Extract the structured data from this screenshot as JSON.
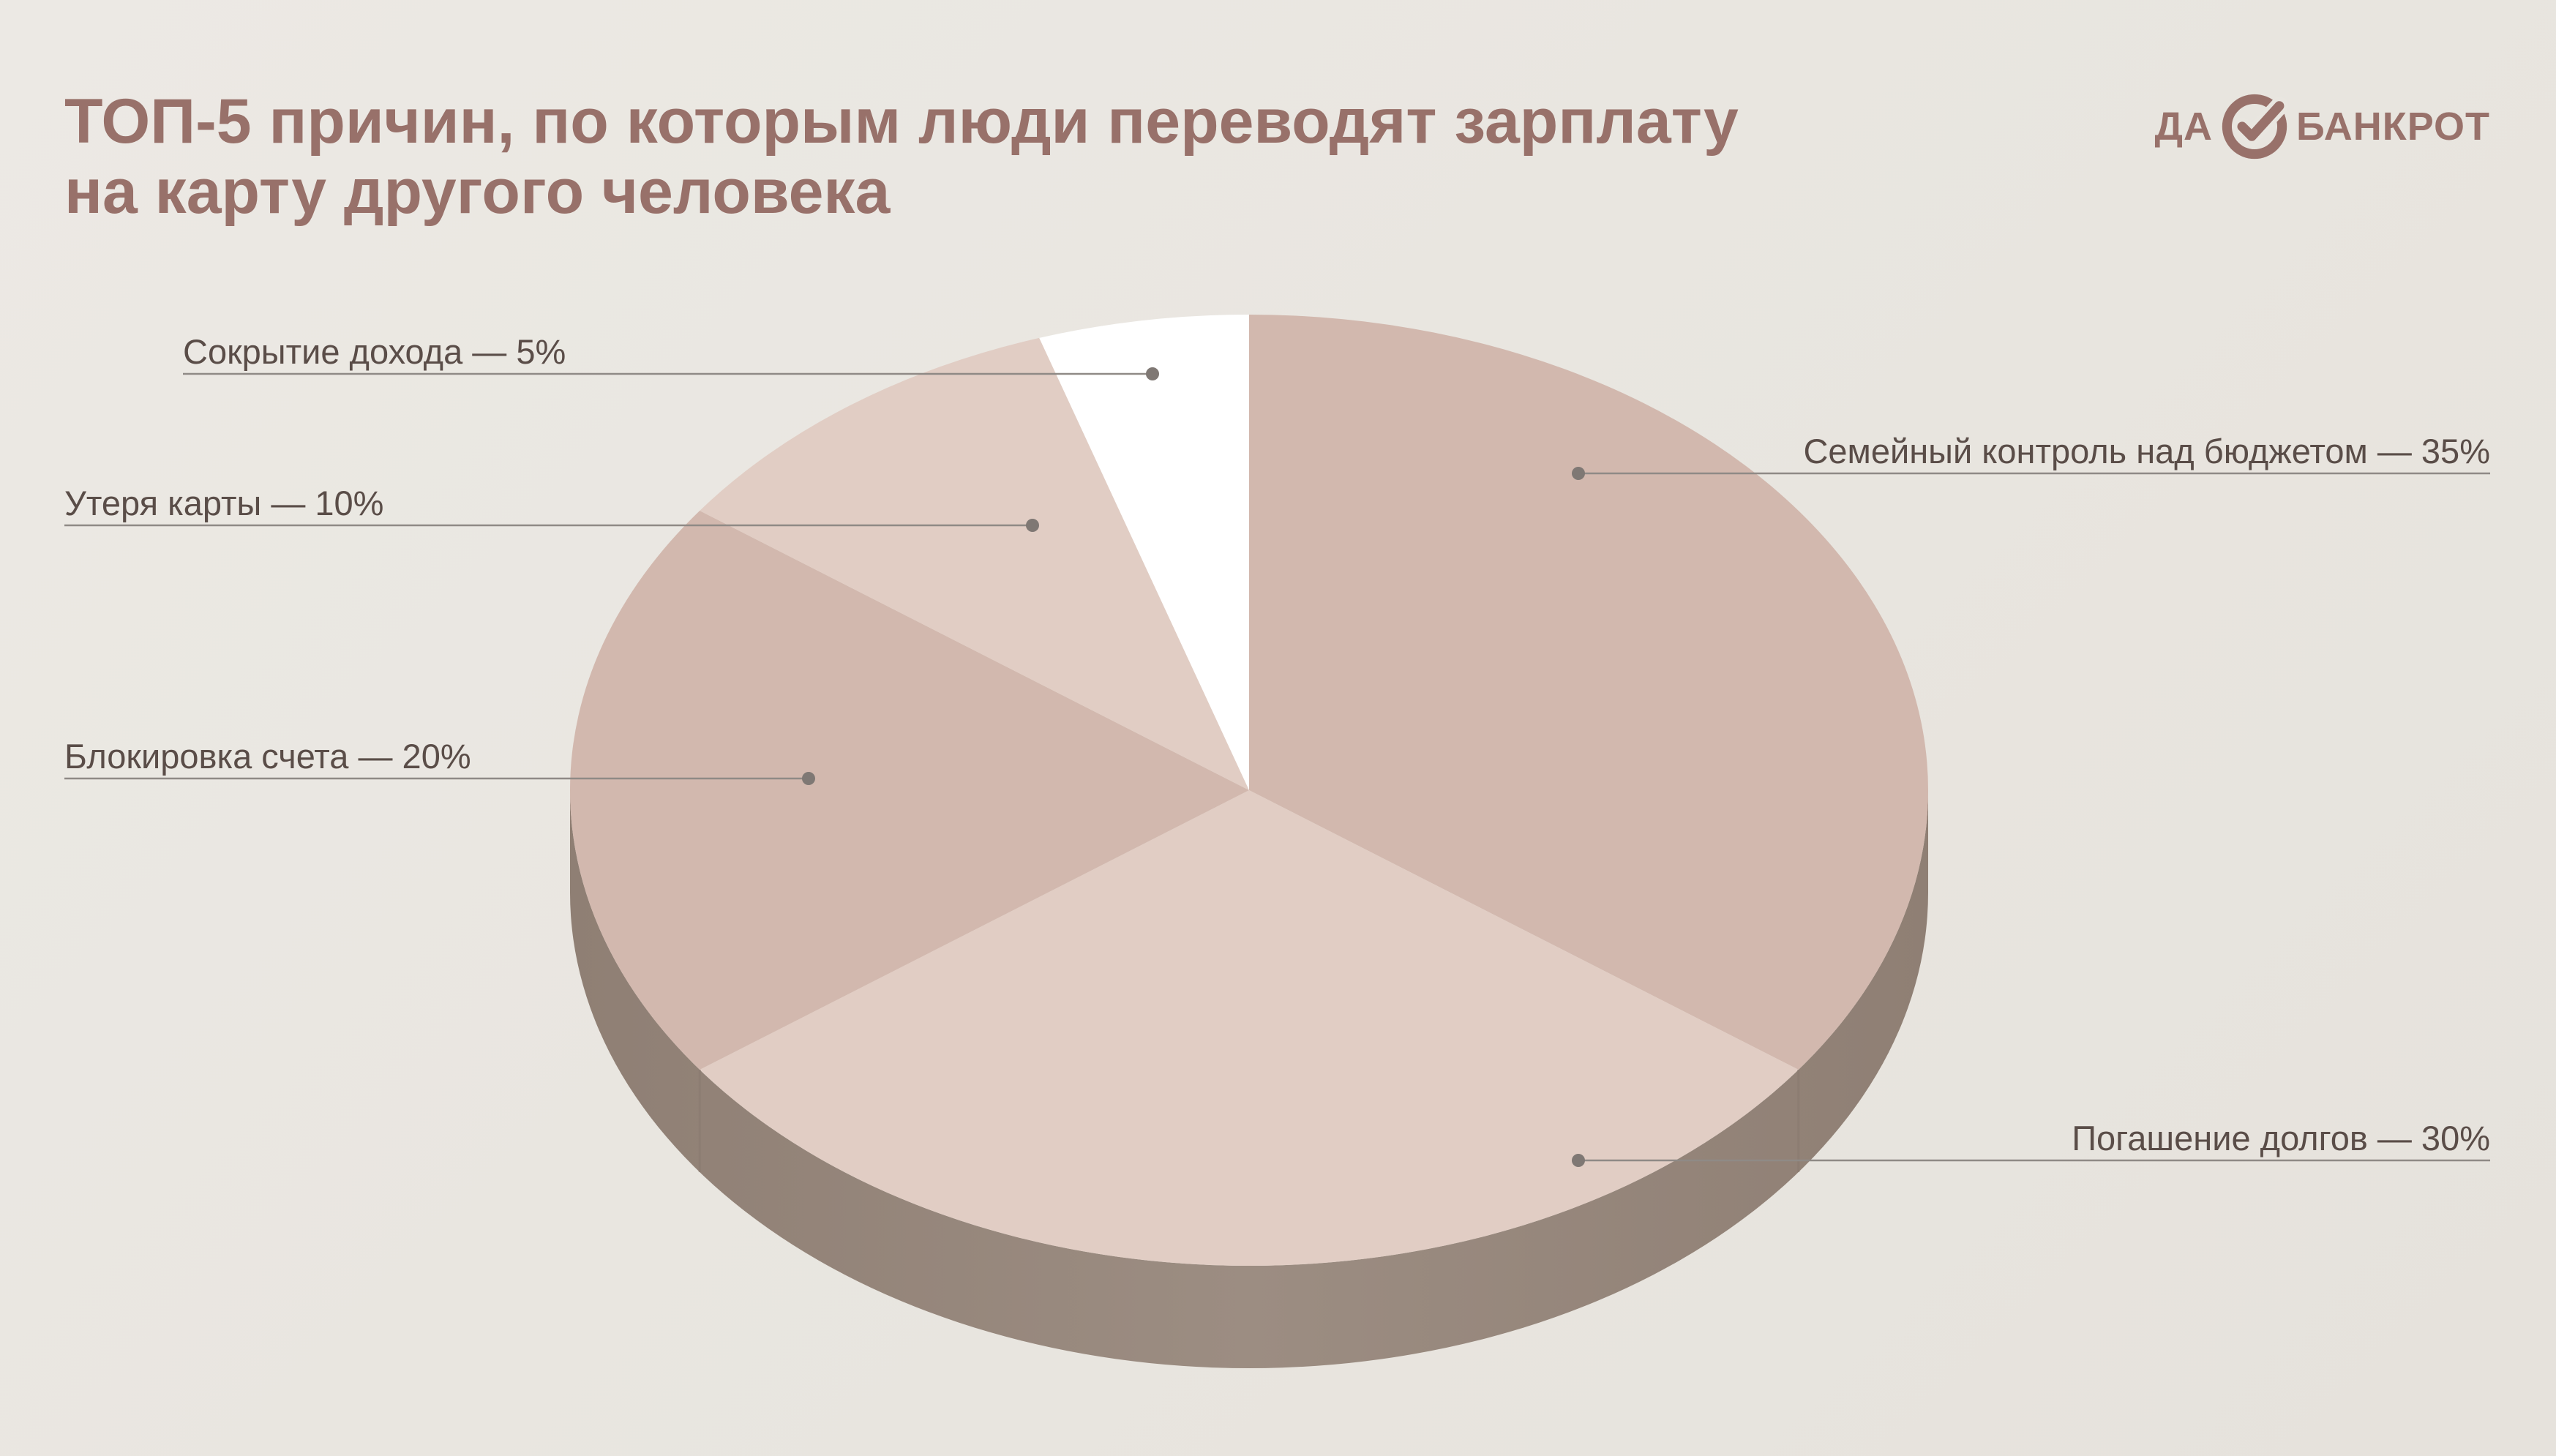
{
  "title_lines": [
    "ТОП-5 причин, по которым люди переводят зарплату",
    "на карту другого человека"
  ],
  "logo": {
    "left": "ДА",
    "right": "БАНКРОТ",
    "icon": "check-circle-icon"
  },
  "chart_data": {
    "type": "pie",
    "style": "3d",
    "slices": [
      {
        "label": "Семейный контроль над бюджетом — 35%",
        "value": 35,
        "color": "#d2b8ae"
      },
      {
        "label": "Погашение долгов — 30%",
        "value": 30,
        "color": "#e1cdc4"
      },
      {
        "label": "Блокировка счета — 20%",
        "value": 20,
        "color": "#d2b8ae"
      },
      {
        "label": "Утеря карты — 10%",
        "value": 10,
        "color": "#e1cdc4"
      },
      {
        "label": "Сокрытие дохода — 5%",
        "value": 5,
        "color": "#ffffff"
      }
    ],
    "side_color": "#9c8d82",
    "side_color_dark": "#8f7f74",
    "leader_color": "#8f8a86"
  }
}
